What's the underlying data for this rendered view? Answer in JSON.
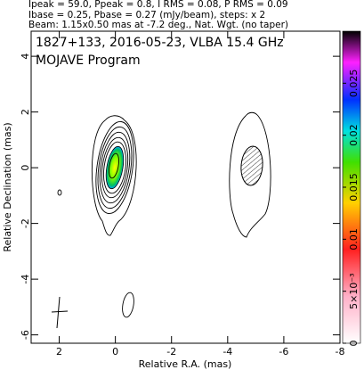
{
  "chart_data": {
    "type": "contour",
    "header": [
      "Ipeak = 59.0, Ppeak = 0.8, I RMS = 0.08, P RMS = 0.09",
      "Ibase = 0.25, Pbase = 0.27 (mJy/beam), steps: x 2",
      "Beam: 1.15x0.50 mas at -7.2 deg., Nat. Wgt. (no taper)"
    ],
    "title": "1827+133, 2016-05-23, VLBA 15.4 GHz",
    "subtitle": "MOJAVE Program",
    "x_label": "Relative R.A. (mas)",
    "y_label": "Relative Declination (mas)",
    "xlim": [
      3,
      -8
    ],
    "xticks": [
      2,
      0,
      -2,
      -4,
      -6,
      -8
    ],
    "ylim": [
      -6.3,
      4.9
    ],
    "yticks": [
      -6,
      -4,
      -2,
      0,
      2,
      4
    ],
    "clim": [
      0,
      0.03
    ],
    "cticks": [
      0,
      {
        "value": 0.005,
        "label": "5×10⁻³"
      },
      0.01,
      0.015,
      0.02,
      0.025
    ]
  }
}
